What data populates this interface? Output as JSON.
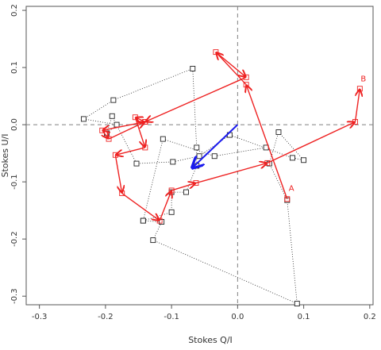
{
  "chart_data": {
    "type": "scatter",
    "title": "",
    "xlabel": "Stokes Q/I",
    "ylabel": "Stokes U/I",
    "xlim": [
      -0.32,
      0.205
    ],
    "ylim": [
      -0.315,
      0.207
    ],
    "xticks": [
      -0.3,
      -0.2,
      -0.1,
      0.0,
      0.1,
      0.2
    ],
    "xtick_labels": [
      "-0.3",
      "-0.2",
      "-0.1",
      "0.0",
      "0.1",
      "0.2"
    ],
    "yticks": [
      -0.3,
      -0.2,
      -0.1,
      0.0,
      0.1,
      0.2
    ],
    "ytick_labels": [
      "-0.3",
      "-0.2",
      "-0.1",
      "0.0",
      "0.1",
      "0.2"
    ],
    "reference_lines": {
      "x": 0,
      "y": 0
    },
    "colors": {
      "red": "#ee2222",
      "black": "#222222",
      "blue": "#1a1aee",
      "axis": "#555555",
      "ref": "#808080"
    },
    "red_track": {
      "start_label": "A",
      "end_label": "B",
      "points": [
        [
          0.075,
          -0.13
        ],
        [
          0.013,
          0.07
        ],
        [
          -0.033,
          0.127
        ],
        [
          0.013,
          0.083
        ],
        [
          -0.14,
          0.005
        ],
        [
          -0.155,
          0.013
        ],
        [
          -0.14,
          -0.04
        ],
        [
          -0.185,
          -0.053
        ],
        [
          -0.175,
          -0.12
        ],
        [
          -0.118,
          -0.168
        ],
        [
          -0.1,
          -0.115
        ],
        [
          -0.063,
          -0.102
        ],
        [
          0.045,
          -0.067
        ],
        [
          0.178,
          0.005
        ],
        [
          0.185,
          0.063
        ]
      ],
      "loop": [
        [
          -0.14,
          0.005
        ],
        [
          -0.205,
          -0.01
        ],
        [
          -0.195,
          -0.025
        ],
        [
          -0.14,
          0.005
        ]
      ]
    },
    "black_track": {
      "points": [
        [
          -0.143,
          -0.168
        ],
        [
          -0.115,
          -0.17
        ],
        [
          -0.128,
          -0.202
        ],
        [
          0.09,
          -0.313
        ],
        [
          0.075,
          -0.132
        ],
        [
          0.048,
          -0.068
        ],
        [
          0.062,
          -0.013
        ],
        [
          0.1,
          -0.062
        ],
        [
          0.083,
          -0.058
        ],
        [
          -0.012,
          -0.018
        ],
        [
          -0.058,
          -0.055
        ],
        [
          -0.098,
          -0.065
        ],
        [
          -0.153,
          -0.068
        ],
        [
          -0.19,
          0.015
        ],
        [
          -0.198,
          -0.015
        ],
        [
          -0.183,
          0.0
        ],
        [
          -0.233,
          0.01
        ],
        [
          -0.188,
          0.043
        ],
        [
          -0.068,
          0.098
        ],
        [
          -0.062,
          -0.04
        ],
        [
          -0.062,
          -0.072
        ],
        [
          -0.078,
          -0.118
        ],
        [
          -0.1,
          -0.118
        ],
        [
          -0.1,
          -0.153
        ],
        [
          -0.143,
          -0.168
        ],
        [
          -0.113,
          -0.025
        ],
        [
          -0.035,
          -0.055
        ],
        [
          0.043,
          -0.04
        ]
      ]
    },
    "blue_vector": {
      "from": [
        0.0,
        0.0
      ],
      "to": [
        -0.07,
        -0.077
      ]
    }
  }
}
